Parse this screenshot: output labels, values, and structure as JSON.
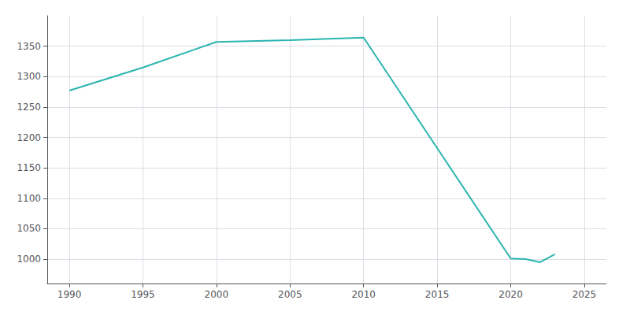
{
  "chart_data": {
    "type": "line",
    "x": [
      1990,
      1995,
      2000,
      2005,
      2010,
      2020,
      2021,
      2022,
      2023
    ],
    "values": [
      1277,
      1315,
      1357,
      1360,
      1364,
      1001,
      1000,
      995,
      1008
    ],
    "color": "#2ab5b0",
    "xlim": [
      1988.5,
      2026.5
    ],
    "ylim": [
      960,
      1400
    ],
    "xticks": [
      1990,
      1995,
      2000,
      2005,
      2010,
      2015,
      2020,
      2025
    ],
    "yticks": [
      1000,
      1050,
      1100,
      1150,
      1200,
      1250,
      1300,
      1350
    ],
    "grid": true
  }
}
